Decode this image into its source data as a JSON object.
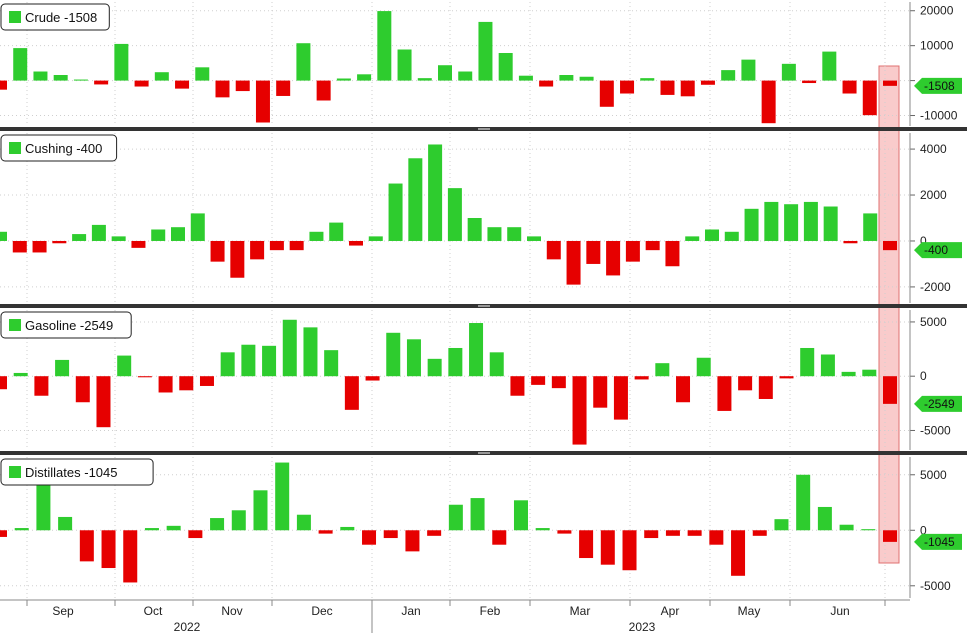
{
  "colors": {
    "positive": "#2ecc2e",
    "negative": "#e60000",
    "highlight": "#f4a0a0",
    "separator": "#333333",
    "grid": "#cfcfcf"
  },
  "chart_data": [
    {
      "type": "bar",
      "legend": "Crude",
      "last_label": "-1508",
      "y_ticks": [
        20000,
        10000,
        0,
        -10000
      ],
      "y_tick_labels": [
        "20000",
        "10000",
        "",
        "-10000"
      ],
      "ylim": [
        -13000,
        22500
      ],
      "values": [
        -2600,
        9300,
        2600,
        1600,
        300,
        -1100,
        10500,
        -1700,
        2400,
        -2300,
        3800,
        -4800,
        -3000,
        -12000,
        -4400,
        10700,
        -5700,
        600,
        1800,
        19900,
        8900,
        700,
        4400,
        2600,
        16800,
        7900,
        1400,
        -1700,
        1600,
        1100,
        -7500,
        -3700,
        700,
        -4100,
        -4500,
        -1200,
        3000,
        6000,
        -12200,
        4800,
        -700,
        8300,
        -3700,
        -9900,
        -1508
      ]
    },
    {
      "type": "bar",
      "legend": "Cushing",
      "last_label": "-400",
      "y_ticks": [
        4000,
        2000,
        0,
        -2000
      ],
      "y_tick_labels": [
        "4000",
        "2000",
        "0",
        "-2000"
      ],
      "ylim": [
        -2700,
        4700
      ],
      "values": [
        400,
        -500,
        -500,
        -100,
        300,
        700,
        200,
        -300,
        500,
        600,
        1200,
        -900,
        -1600,
        -800,
        -400,
        -400,
        400,
        800,
        -200,
        200,
        2500,
        3600,
        4200,
        2300,
        1000,
        600,
        600,
        200,
        -800,
        -1900,
        -1000,
        -1500,
        -900,
        -400,
        -1100,
        200,
        500,
        400,
        1400,
        1700,
        1600,
        1700,
        1500,
        -100,
        1200,
        -400
      ]
    },
    {
      "type": "bar",
      "legend": "Gasoline",
      "last_label": "-2549",
      "y_ticks": [
        5000,
        0,
        -5000
      ],
      "y_tick_labels": [
        "5000",
        "0",
        "-5000"
      ],
      "ylim": [
        -6800,
        6100
      ],
      "values": [
        -1200,
        300,
        -1800,
        1500,
        -2400,
        -4700,
        1900,
        -100,
        -1500,
        -1300,
        -900,
        2200,
        2900,
        2800,
        5200,
        4500,
        2400,
        -3100,
        -400,
        4000,
        3400,
        1600,
        2600,
        4900,
        2200,
        -1800,
        -800,
        -1100,
        -6300,
        -2900,
        -4000,
        -300,
        1200,
        -2400,
        1700,
        -3200,
        -1300,
        -2100,
        -200,
        2600,
        2000,
        400,
        600,
        -2549
      ]
    },
    {
      "type": "bar",
      "legend": "Distillates",
      "last_label": "-1045",
      "y_ticks": [
        5000,
        0,
        -5000
      ],
      "y_tick_labels": [
        "5000",
        "0",
        "-5000"
      ],
      "ylim": [
        -6100,
        6600
      ],
      "values": [
        -600,
        200,
        4200,
        1200,
        -2800,
        -3400,
        -4700,
        200,
        400,
        -700,
        1100,
        1800,
        3600,
        6100,
        1400,
        -300,
        300,
        -1300,
        -700,
        -1900,
        -500,
        2300,
        2900,
        -1300,
        2700,
        200,
        -300,
        -2500,
        -3100,
        -3600,
        -700,
        -500,
        -500,
        -1300,
        -4100,
        -500,
        1000,
        5000,
        2100,
        500,
        100,
        -1045
      ]
    }
  ],
  "x_axis": {
    "months": [
      "Sep",
      "Oct",
      "Nov",
      "Dec",
      "Jan",
      "Feb",
      "Mar",
      "Apr",
      "May",
      "Jun"
    ],
    "years": [
      "2022",
      "2023"
    ]
  }
}
